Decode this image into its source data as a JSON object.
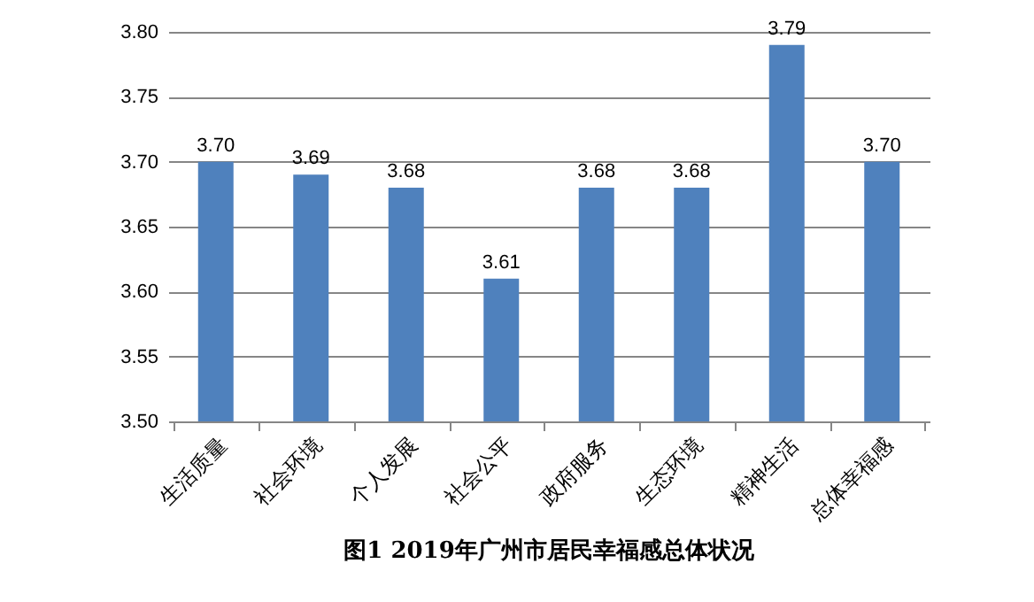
{
  "chart_data": {
    "type": "bar",
    "title": "图1      2019年广州市居民幸福感总体状况",
    "categories": [
      "生活质量",
      "社会环境",
      "个人发展",
      "社会公平",
      "政府服务",
      "生态环境",
      "精神生活",
      "总体幸福感"
    ],
    "values": [
      3.7,
      3.69,
      3.68,
      3.61,
      3.68,
      3.68,
      3.79,
      3.7
    ],
    "value_labels": [
      "3.70",
      "3.69",
      "3.68",
      "3.61",
      "3.68",
      "3.68",
      "3.79",
      "3.70"
    ],
    "color": "#4f81bd",
    "ylim": [
      3.5,
      3.8
    ],
    "yticks": [
      {
        "value": 3.5,
        "label": "3.50"
      },
      {
        "value": 3.55,
        "label": "3.55"
      },
      {
        "value": 3.6,
        "label": "3.60"
      },
      {
        "value": 3.65,
        "label": "3.65"
      },
      {
        "value": 3.7,
        "label": "3.70"
      },
      {
        "value": 3.75,
        "label": "3.75"
      },
      {
        "value": 3.8,
        "label": "3.80"
      }
    ],
    "grid": true
  }
}
